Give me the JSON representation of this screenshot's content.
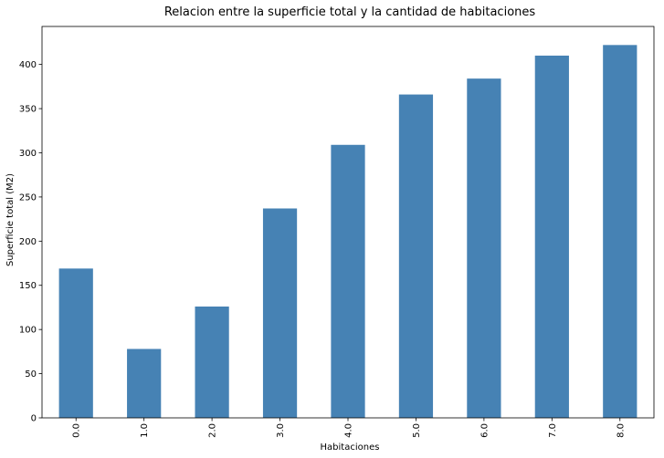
{
  "chart_data": {
    "type": "bar",
    "title": "Relacion entre la superficie total y la cantidad de habitaciones",
    "xlabel": "Habitaciones",
    "ylabel": "Superficie total (M2)",
    "categories": [
      "0.0",
      "1.0",
      "2.0",
      "3.0",
      "4.0",
      "5.0",
      "6.0",
      "7.0",
      "8.0"
    ],
    "values": [
      169,
      78,
      126,
      237,
      309,
      366,
      384,
      410,
      422
    ],
    "ylim": [
      0,
      443
    ],
    "yticks": [
      0,
      50,
      100,
      150,
      200,
      250,
      300,
      350,
      400
    ],
    "bar_color": "#4682b4",
    "grid": false,
    "legend": "none"
  }
}
